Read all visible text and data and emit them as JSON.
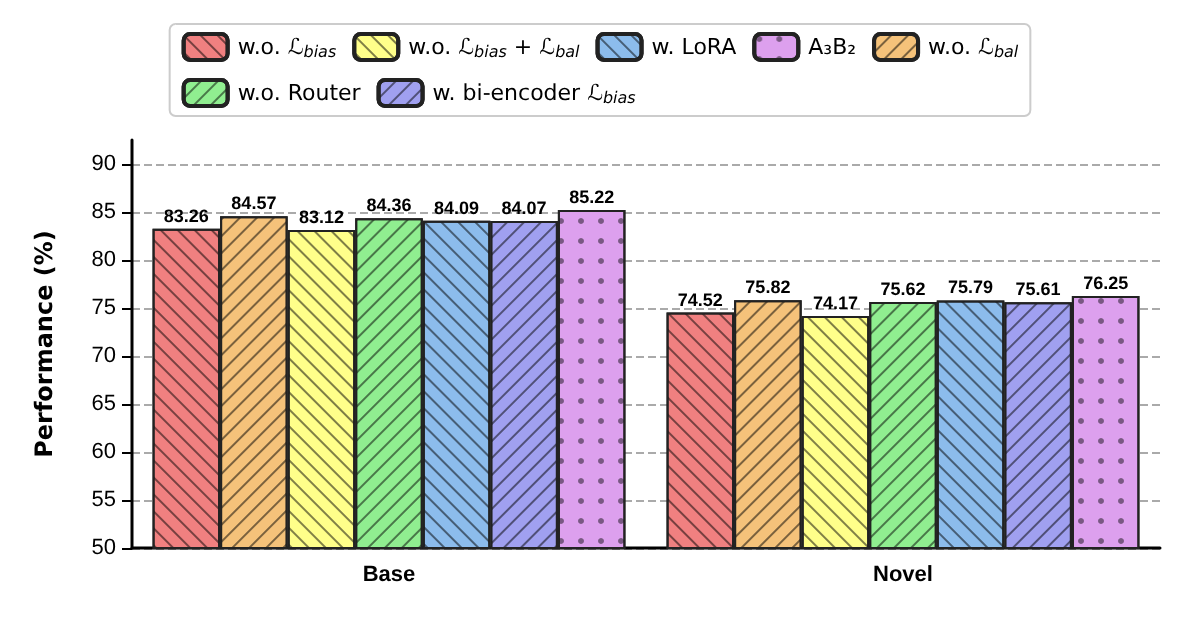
{
  "chart_data": {
    "type": "bar",
    "ylabel": "Performance (%)",
    "categories": [
      "Base",
      "Novel"
    ],
    "series": [
      {
        "name": "w.o. ℒ$_{bias}$",
        "color": "#f08080",
        "values": [
          83.26,
          74.52
        ]
      },
      {
        "name": "w.o. ℒ$_{bal}$",
        "color": "#f5c27a",
        "values": [
          84.57,
          75.82
        ]
      },
      {
        "name": "w.o. ℒ$_{bias}$ + ℒ$_{bal}$",
        "color": "#ffff8a",
        "values": [
          83.12,
          74.17
        ]
      },
      {
        "name": "w.o. Router",
        "color": "#90ee90",
        "values": [
          84.36,
          75.62
        ]
      },
      {
        "name": "w. LoRA",
        "color": "#8cbcec",
        "values": [
          84.09,
          75.79
        ]
      },
      {
        "name": "w. bi-encoder ℒ$_{bias}$",
        "color": "#a0a0f0",
        "values": [
          84.07,
          75.61
        ]
      },
      {
        "name": "A₃B₂",
        "color": "#dda0ee",
        "values": [
          85.22,
          76.25
        ]
      }
    ],
    "ylim": [
      50,
      92.5
    ],
    "yticks": [
      50,
      55,
      60,
      65,
      70,
      75,
      80,
      85,
      90
    ],
    "grid": "y",
    "legend": "top",
    "data_labels": true
  }
}
